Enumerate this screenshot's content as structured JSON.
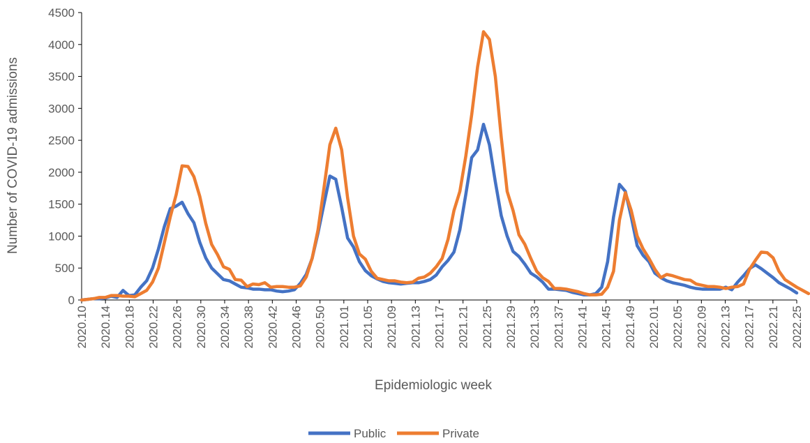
{
  "chart_data": {
    "type": "line",
    "title": "",
    "xlabel": "Epidemiologic week",
    "ylabel": "Number of COVID-19 admissions",
    "ylim": [
      0,
      4500
    ],
    "yticks": [
      "0",
      "500",
      "1000",
      "1500",
      "2000",
      "2500",
      "3000",
      "3500",
      "4000",
      "4500"
    ],
    "ytick_values": [
      0,
      500,
      1000,
      1500,
      2000,
      2500,
      3000,
      3500,
      4000,
      4500
    ],
    "grid": false,
    "legend": "bottom",
    "x_tick_labels": [
      "2020.10",
      "2020.14",
      "2020.18",
      "2020.22",
      "2020.26",
      "2020.30",
      "2020.34",
      "2020.38",
      "2020.42",
      "2020.46",
      "2020.50",
      "2021.01",
      "2021.05",
      "2021.09",
      "2021.13",
      "2021.17",
      "2021.21",
      "2021.25",
      "2021.29",
      "2021.33",
      "2021.37",
      "2021.41",
      "2021.45",
      "2021.49",
      "2022.01",
      "2022.05",
      "2022.09",
      "2022.13",
      "2022.17",
      "2022.21",
      "2022.25"
    ],
    "series": [
      {
        "name": "Public",
        "color": "#4472C4",
        "values": [
          0,
          10,
          20,
          20,
          30,
          60,
          40,
          150,
          70,
          80,
          200,
          300,
          500,
          800,
          1150,
          1430,
          1470,
          1530,
          1350,
          1210,
          900,
          660,
          500,
          410,
          320,
          300,
          250,
          200,
          190,
          170,
          170,
          160,
          160,
          140,
          130,
          140,
          160,
          260,
          400,
          650,
          1050,
          1500,
          1940,
          1890,
          1450,
          970,
          830,
          600,
          460,
          380,
          330,
          290,
          270,
          260,
          250,
          260,
          270,
          270,
          290,
          320,
          390,
          520,
          620,
          750,
          1100,
          1650,
          2230,
          2350,
          2750,
          2430,
          1850,
          1320,
          1000,
          760,
          680,
          560,
          420,
          360,
          280,
          170,
          170,
          160,
          150,
          120,
          100,
          80,
          80,
          100,
          200,
          600,
          1300,
          1810,
          1700,
          1300,
          850,
          700,
          600,
          420,
          350,
          300,
          270,
          250,
          230,
          200,
          180,
          170,
          170,
          170,
          170,
          200,
          160,
          280,
          380,
          490,
          550,
          490,
          420,
          350,
          270,
          220,
          170,
          110
        ]
      },
      {
        "name": "Private",
        "color": "#ED7D31",
        "values": [
          0,
          10,
          20,
          40,
          40,
          70,
          70,
          60,
          60,
          50,
          100,
          150,
          280,
          500,
          900,
          1300,
          1650,
          2100,
          2090,
          1930,
          1620,
          1200,
          870,
          710,
          520,
          480,
          320,
          310,
          210,
          250,
          240,
          270,
          200,
          210,
          210,
          200,
          200,
          220,
          360,
          650,
          1100,
          1750,
          2430,
          2690,
          2350,
          1600,
          1000,
          720,
          640,
          450,
          340,
          320,
          300,
          300,
          280,
          270,
          280,
          340,
          360,
          420,
          520,
          650,
          950,
          1400,
          1700,
          2250,
          2900,
          3650,
          4200,
          4080,
          3500,
          2550,
          1700,
          1400,
          1020,
          870,
          650,
          450,
          350,
          290,
          180,
          180,
          170,
          150,
          130,
          100,
          80,
          80,
          90,
          200,
          450,
          1250,
          1680,
          1400,
          1000,
          800,
          650,
          480,
          350,
          400,
          380,
          350,
          320,
          310,
          250,
          230,
          210,
          210,
          200,
          180,
          200,
          210,
          250,
          480,
          620,
          750,
          740,
          660,
          450,
          320,
          260,
          200,
          150,
          100
        ]
      }
    ]
  }
}
